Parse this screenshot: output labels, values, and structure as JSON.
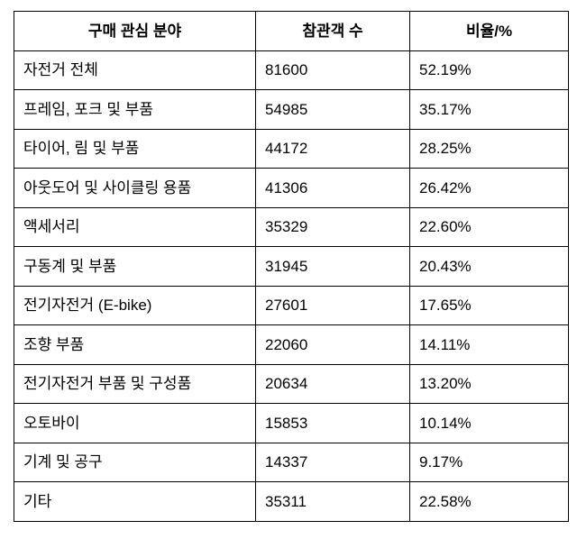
{
  "table": {
    "headers": {
      "category": "구매 관심 분야",
      "visitors": "참관객 수",
      "ratio": "비율/%"
    },
    "rows": [
      {
        "category": "자전거 전체",
        "visitors": "81600",
        "ratio": "52.19%"
      },
      {
        "category": "프레임, 포크 및 부품",
        "visitors": "54985",
        "ratio": "35.17%"
      },
      {
        "category": "타이어, 림 및 부품",
        "visitors": "44172",
        "ratio": "28.25%"
      },
      {
        "category": "아웃도어 및 사이클링 용품",
        "visitors": "41306",
        "ratio": "26.42%"
      },
      {
        "category": "액세서리",
        "visitors": "35329",
        "ratio": "22.60%"
      },
      {
        "category": "구동계 및 부품",
        "visitors": "31945",
        "ratio": "20.43%"
      },
      {
        "category": "전기자전거 (E-bike)",
        "visitors": "27601",
        "ratio": "17.65%"
      },
      {
        "category": "조향 부품",
        "visitors": "22060",
        "ratio": "14.11%"
      },
      {
        "category": "전기자전거 부품 및 구성품",
        "visitors": "20634",
        "ratio": "13.20%"
      },
      {
        "category": "오토바이",
        "visitors": "15853",
        "ratio": "10.14%"
      },
      {
        "category": "기계 및 공구",
        "visitors": "14337",
        "ratio": "9.17%"
      },
      {
        "category": "기타",
        "visitors": "35311",
        "ratio": "22.58%"
      }
    ]
  },
  "colors": {
    "border": "#000000",
    "text": "#000000",
    "background": "#ffffff"
  }
}
